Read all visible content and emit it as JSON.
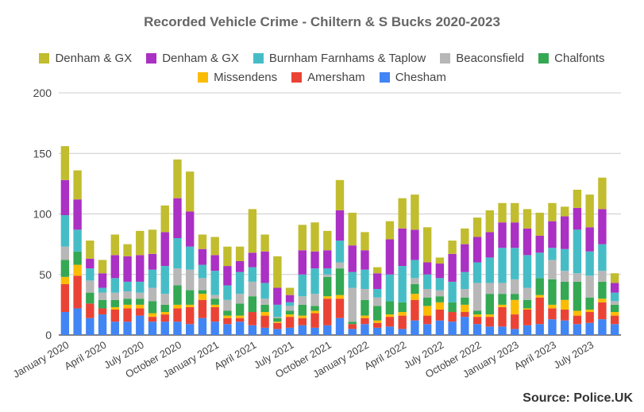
{
  "title": "Recorded Vehicle Crime - Chiltern & S Bucks 2020-2023",
  "source": "Source: Police.UK",
  "chart_data": {
    "type": "bar",
    "stacked": true,
    "title": "Recorded Vehicle Crime - Chiltern & S Bucks 2020-2023",
    "xlabel": "",
    "ylabel": "",
    "ylim": [
      0,
      200
    ],
    "yticks": [
      0,
      50,
      100,
      150,
      200
    ],
    "grid": true,
    "legend_position": "top",
    "x_tick_labels": [
      "January 2020",
      "April 2020",
      "July 2020",
      "October 2020",
      "January 2021",
      "April 2021",
      "July 2021",
      "October 2021",
      "January 2022",
      "April 2022",
      "July 2022",
      "October 2022",
      "January 2023",
      "April 2023",
      "July 2023"
    ],
    "x_tick_every": 3,
    "series": [
      {
        "name": "Chesham",
        "color": "#4285f4",
        "values": [
          19,
          22,
          14,
          17,
          11,
          11,
          16,
          11,
          11,
          11,
          9,
          14,
          11,
          9,
          11,
          8,
          6,
          5,
          6,
          8,
          6,
          8,
          14,
          5,
          9,
          6,
          7,
          5,
          12,
          9,
          12,
          11,
          15,
          9,
          7,
          7,
          5,
          8,
          9,
          13,
          12,
          9,
          10,
          13,
          9
        ]
      },
      {
        "name": "Amersham",
        "color": "#ea4335",
        "values": [
          23,
          27,
          12,
          5,
          10,
          11,
          6,
          4,
          6,
          11,
          14,
          15,
          12,
          5,
          3,
          11,
          10,
          5,
          9,
          6,
          12,
          22,
          16,
          4,
          5,
          4,
          8,
          11,
          17,
          7,
          9,
          8,
          4,
          6,
          8,
          16,
          12,
          13,
          22,
          9,
          9,
          7,
          9,
          14,
          7
        ]
      },
      {
        "name": "Missendens",
        "color": "#fbbc04",
        "values": [
          6,
          9,
          0,
          0,
          2,
          3,
          3,
          3,
          2,
          3,
          2,
          5,
          2,
          2,
          2,
          0,
          3,
          1,
          2,
          2,
          2,
          2,
          3,
          0,
          2,
          2,
          2,
          3,
          5,
          8,
          6,
          0,
          6,
          2,
          2,
          2,
          12,
          1,
          2,
          3,
          8,
          4,
          2,
          3,
          3
        ]
      },
      {
        "name": "Chalfonts",
        "color": "#34a853",
        "values": [
          14,
          11,
          9,
          7,
          6,
          5,
          5,
          10,
          6,
          16,
          12,
          3,
          5,
          4,
          10,
          13,
          6,
          3,
          3,
          9,
          4,
          16,
          22,
          2,
          13,
          12,
          11,
          8,
          8,
          7,
          5,
          8,
          6,
          3,
          17,
          9,
          5,
          7,
          14,
          21,
          15,
          24,
          10,
          14,
          6
        ]
      },
      {
        "name": "Beaconsfield",
        "color": "#b7b7b7",
        "values": [
          11,
          0,
          10,
          6,
          6,
          6,
          5,
          11,
          9,
          14,
          17,
          10,
          3,
          9,
          8,
          12,
          5,
          1,
          4,
          7,
          10,
          2,
          5,
          28,
          9,
          7,
          0,
          0,
          5,
          7,
          5,
          0,
          7,
          23,
          9,
          9,
          12,
          10,
          0,
          16,
          9,
          7,
          18,
          9,
          3
        ]
      },
      {
        "name": "Burnham Farnhams & Taplow",
        "color": "#46bdc6",
        "values": [
          26,
          18,
          10,
          4,
          12,
          8,
          9,
          15,
          23,
          25,
          19,
          11,
          20,
          12,
          18,
          12,
          13,
          10,
          3,
          18,
          21,
          5,
          18,
          13,
          16,
          7,
          22,
          30,
          15,
          12,
          10,
          17,
          14,
          17,
          21,
          29,
          26,
          27,
          21,
          10,
          18,
          36,
          20,
          22,
          7
        ]
      },
      {
        "name": "Denham & GX",
        "color": "#ab30c4",
        "values": [
          29,
          25,
          8,
          12,
          19,
          21,
          22,
          13,
          28,
          33,
          29,
          13,
          13,
          16,
          9,
          12,
          26,
          14,
          6,
          20,
          14,
          15,
          25,
          22,
          16,
          13,
          29,
          31,
          25,
          10,
          12,
          23,
          23,
          21,
          21,
          21,
          21,
          22,
          14,
          22,
          27,
          18,
          20,
          29,
          8
        ]
      },
      {
        "name": "Denham & GX",
        "color": "#c1bd2f",
        "values": [
          28,
          24,
          15,
          11,
          17,
          10,
          20,
          20,
          22,
          32,
          33,
          12,
          15,
          16,
          12,
          36,
          14,
          26,
          6,
          21,
          24,
          16,
          25,
          27,
          15,
          5,
          15,
          25,
          29,
          29,
          5,
          11,
          13,
          16,
          18,
          16,
          16,
          16,
          19,
          15,
          8,
          15,
          27,
          26,
          8
        ]
      }
    ]
  },
  "legend": {
    "row1": [
      {
        "label": "Denham & GX",
        "color": "#c1bd2f"
      },
      {
        "label": "Denham & GX",
        "color": "#ab30c4"
      },
      {
        "label": "Burnham Farnhams & Taplow",
        "color": "#46bdc6"
      },
      {
        "label": "Beaconsfield",
        "color": "#b7b7b7"
      },
      {
        "label": "Chalfonts",
        "color": "#34a853"
      }
    ],
    "row2": [
      {
        "label": "Missendens",
        "color": "#fbbc04"
      },
      {
        "label": "Amersham",
        "color": "#ea4335"
      },
      {
        "label": "Chesham",
        "color": "#4285f4"
      }
    ]
  }
}
